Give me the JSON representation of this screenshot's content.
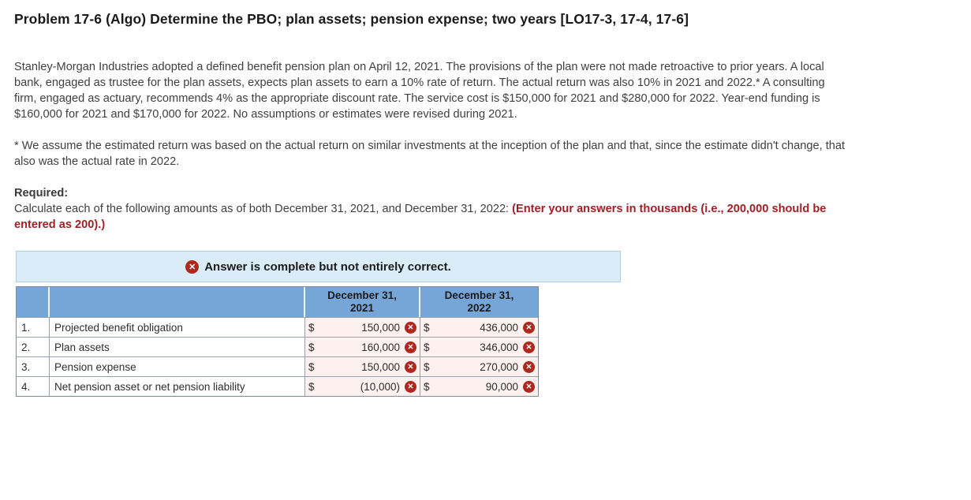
{
  "page": {
    "title": "Problem 17-6 (Algo) Determine the PBO; plan assets; pension expense; two years [LO17-3, 17-4, 17-6]",
    "intro": "Stanley-Morgan Industries adopted a defined benefit pension plan on April 12, 2021. The provisions of the plan were not made retroactive to prior years. A local bank, engaged as trustee for the plan assets, expects plan assets to earn a 10% rate of return. The actual return was also 10% in 2021 and 2022.* A consulting firm, engaged as actuary, recommends 4% as the appropriate discount rate. The service cost is $150,000 for 2021 and $280,000 for 2022. Year-end funding is $160,000 for 2021 and $170,000 for 2022. No assumptions or estimates were revised during 2021.",
    "footnote": "* We assume the estimated return was based on the actual return on similar investments at the inception of the plan and that, since the estimate didn't change, that also was the actual rate in 2022.",
    "required_label": "Required:",
    "required_text": "Calculate each of the following amounts as of both December 31, 2021, and December 31, 2022: ",
    "required_emphasis": "(Enter your answers in thousands (i.e., 200,000 should be entered as 200).)"
  },
  "status_banner": {
    "icon": "incorrect-circle",
    "text": "Answer is complete but not entirely correct."
  },
  "icons": {
    "incorrect_glyph": "✕"
  },
  "answer_table": {
    "col_2021": {
      "line1": "December 31,",
      "line2": "2021"
    },
    "col_2022": {
      "line1": "December 31,",
      "line2": "2022"
    },
    "rows": [
      {
        "num": "1.",
        "label": "Projected benefit obligation",
        "dollar": "$",
        "v2021": "150,000",
        "v2022": "436,000",
        "status_2021": "incorrect",
        "status_2022": "incorrect"
      },
      {
        "num": "2.",
        "label": "Plan assets",
        "dollar": "$",
        "v2021": "160,000",
        "v2022": "346,000",
        "status_2021": "incorrect",
        "status_2022": "incorrect"
      },
      {
        "num": "3.",
        "label": "Pension expense",
        "dollar": "$",
        "v2021": "150,000",
        "v2022": "270,000",
        "status_2021": "incorrect",
        "status_2022": "incorrect"
      },
      {
        "num": "4.",
        "label": "Net pension asset or net pension liability",
        "dollar": "$",
        "v2021": "(10,000)",
        "v2022": "90,000",
        "status_2021": "incorrect",
        "status_2022": "incorrect"
      }
    ]
  },
  "colors": {
    "table_header_blue": "#76a5d8",
    "banner_blue": "#d9ecf8",
    "incorrect_cell_pink": "#fcf1ee",
    "incorrect_red": "#b0271d",
    "emphasis_red": "#9f2025",
    "body_text": "#404040"
  }
}
